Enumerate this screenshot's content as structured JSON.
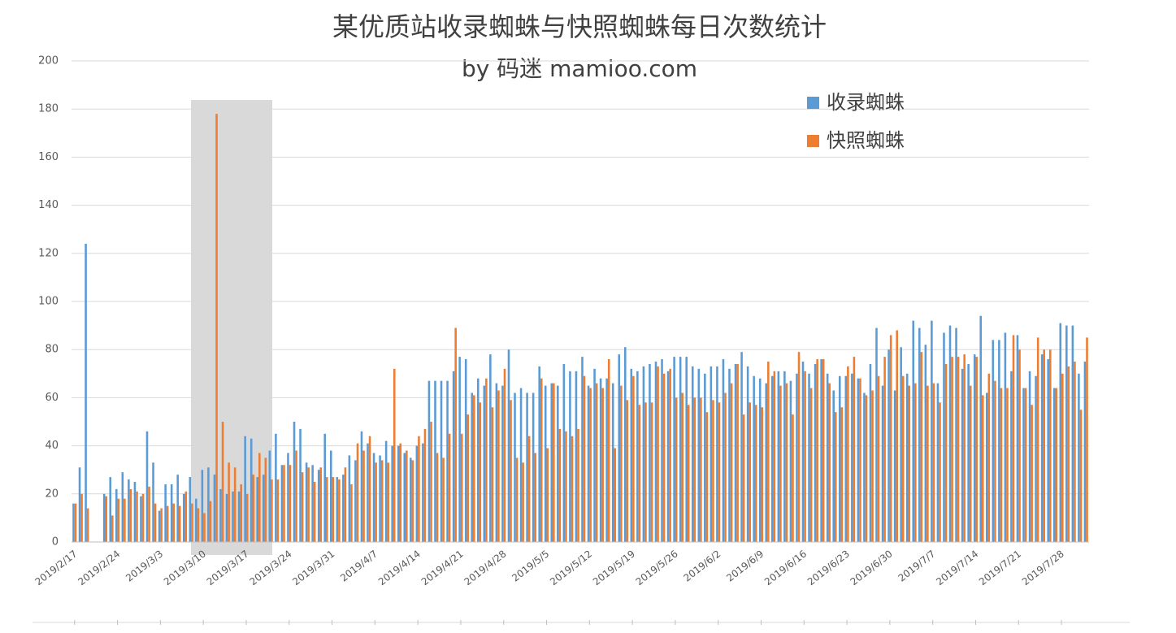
{
  "chart_data": {
    "type": "bar",
    "title": "某优质站收录蜘蛛与快照蜘蛛每日次数统计",
    "subtitle": "by 码迷 mamioo.com",
    "categories": [
      "2019/2/17",
      null,
      null,
      null,
      null,
      null,
      null,
      "2019/2/24",
      null,
      null,
      null,
      null,
      null,
      null,
      "2019/3/3",
      null,
      null,
      null,
      null,
      null,
      null,
      "2019/3/10",
      null,
      null,
      null,
      null,
      null,
      null,
      "2019/3/17",
      null,
      null,
      null,
      null,
      null,
      null,
      "2019/3/24",
      null,
      null,
      null,
      null,
      null,
      null,
      "2019/3/31",
      null,
      null,
      null,
      null,
      null,
      null,
      "2019/4/7",
      null,
      null,
      null,
      null,
      null,
      null,
      "2019/4/14",
      null,
      null,
      null,
      null,
      null,
      null,
      "2019/4/21",
      null,
      null,
      null,
      null,
      null,
      null,
      "2019/4/28",
      null,
      null,
      null,
      null,
      null,
      null,
      "2019/5/5",
      null,
      null,
      null,
      null,
      null,
      null,
      "2019/5/12",
      null,
      null,
      null,
      null,
      null,
      null,
      "2019/5/19",
      null,
      null,
      null,
      null,
      null,
      null,
      "2019/5/26",
      null,
      null,
      null,
      null,
      null,
      null,
      "2019/6/2",
      null,
      null,
      null,
      null,
      null,
      null,
      "2019/6/9",
      null,
      null,
      null,
      null,
      null,
      null,
      "2019/6/16",
      null,
      null,
      null,
      null,
      null,
      null,
      "2019/6/23",
      null,
      null,
      null,
      null,
      null,
      null,
      "2019/6/30",
      null,
      null,
      null,
      null,
      null,
      null,
      "2019/7/7",
      null,
      null,
      null,
      null,
      null,
      null,
      "2019/7/14",
      null,
      null,
      null,
      null,
      null,
      null,
      "2019/7/21",
      null,
      null,
      null,
      null,
      null,
      null,
      "2019/7/28",
      null,
      null,
      null,
      null
    ],
    "series": [
      {
        "name": "收录蜘蛛",
        "color": "#5b9bd5",
        "values": [
          16,
          31,
          124,
          null,
          null,
          20,
          27,
          22,
          29,
          26,
          25,
          19,
          46,
          33,
          13,
          24,
          24,
          28,
          20,
          27,
          18,
          30,
          31,
          28,
          22,
          20,
          21,
          21,
          44,
          43,
          27,
          28,
          38,
          45,
          32,
          37,
          50,
          47,
          33,
          32,
          30,
          45,
          38,
          27,
          28,
          36,
          34,
          46,
          41,
          37,
          36,
          42,
          40,
          40,
          37,
          35,
          40,
          41,
          67,
          67,
          67,
          67,
          71,
          77,
          76,
          62,
          68,
          65,
          78,
          66,
          65,
          80,
          62,
          64,
          62,
          62,
          73,
          65,
          66,
          65,
          74,
          71,
          71,
          77,
          65,
          72,
          68,
          68,
          66,
          78,
          81,
          72,
          71,
          73,
          74,
          75,
          76,
          71,
          77,
          77,
          77,
          73,
          72,
          70,
          73,
          73,
          76,
          72,
          74,
          79,
          73,
          69,
          68,
          66,
          69,
          71,
          71,
          67,
          70,
          75,
          70,
          74,
          76,
          70,
          63,
          69,
          69,
          70,
          68,
          62,
          74,
          89,
          65,
          80,
          63,
          81,
          70,
          92,
          89,
          82,
          92,
          66,
          87,
          90,
          89,
          72,
          74,
          78,
          94,
          62,
          84,
          84,
          87,
          71,
          86,
          64,
          71,
          69,
          78,
          76,
          64,
          91,
          90,
          90,
          70,
          75
        ]
      },
      {
        "name": "快照蜘蛛",
        "color": "#ed7d31",
        "values": [
          16,
          20,
          14,
          null,
          null,
          19,
          11,
          18,
          18,
          22,
          21,
          20,
          23,
          16,
          14,
          15,
          16,
          15,
          21,
          16,
          14,
          12,
          17,
          178,
          50,
          33,
          31,
          24,
          20,
          28,
          37,
          35,
          26,
          26,
          32,
          32,
          38,
          29,
          31,
          25,
          31,
          27,
          27,
          26,
          31,
          24,
          41,
          38,
          44,
          33,
          34,
          33,
          72,
          41,
          38,
          34,
          44,
          47,
          50,
          37,
          35,
          45,
          89,
          45,
          53,
          61,
          58,
          68,
          56,
          63,
          72,
          59,
          35,
          33,
          44,
          37,
          68,
          39,
          66,
          47,
          46,
          44,
          47,
          69,
          64,
          66,
          64,
          76,
          39,
          65,
          59,
          69,
          57,
          58,
          58,
          73,
          70,
          72,
          60,
          62,
          57,
          60,
          60,
          54,
          59,
          58,
          62,
          66,
          74,
          53,
          58,
          57,
          56,
          75,
          71,
          65,
          66,
          53,
          79,
          71,
          64,
          76,
          76,
          66,
          54,
          56,
          73,
          77,
          68,
          61,
          63,
          69,
          77,
          86,
          88,
          69,
          65,
          66,
          79,
          65,
          66,
          58,
          74,
          77,
          77,
          78,
          65,
          77,
          61,
          70,
          67,
          64,
          64,
          86,
          80,
          64,
          57,
          85,
          80,
          80,
          64,
          70,
          73,
          75,
          55,
          85
        ]
      }
    ],
    "ylim": [
      0,
      200
    ],
    "yticks": [
      0,
      20,
      40,
      60,
      80,
      100,
      120,
      140,
      160,
      180,
      200
    ],
    "grid": true,
    "legend": "top-right"
  }
}
